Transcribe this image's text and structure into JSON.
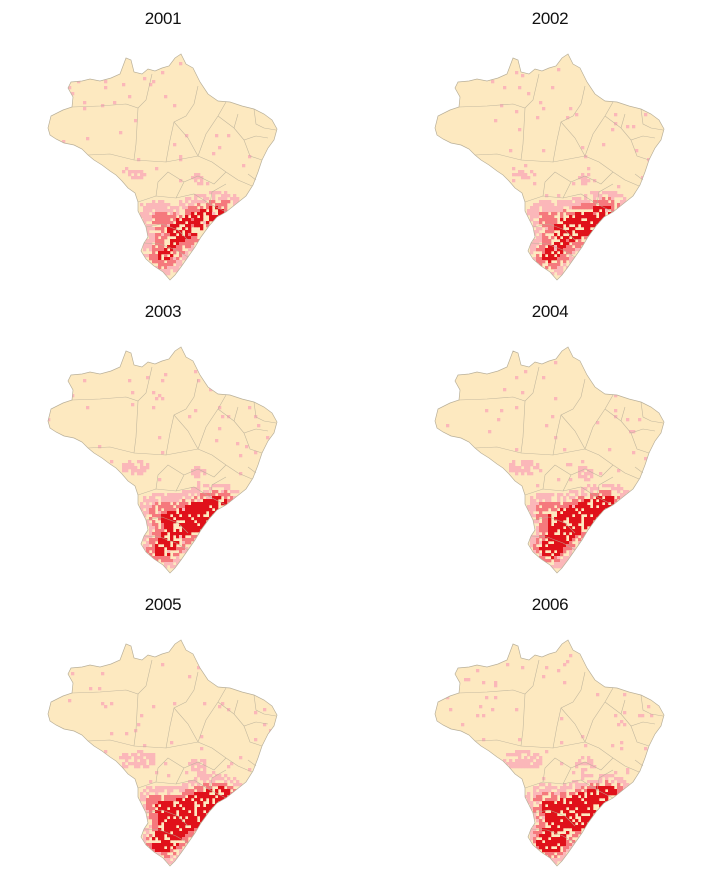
{
  "panels": [
    {
      "year": "2001",
      "intensity": 0.35
    },
    {
      "year": "2002",
      "intensity": 0.4
    },
    {
      "year": "2003",
      "intensity": 0.5
    },
    {
      "year": "2004",
      "intensity": 0.55
    },
    {
      "year": "2005",
      "intensity": 0.7
    },
    {
      "year": "2006",
      "intensity": 0.75
    }
  ],
  "colors": {
    "land": "#fde9c0",
    "border": "#b9b09a",
    "light": "#fbb7b9",
    "mid": "#f5797d",
    "dark": "#e0111a"
  }
}
